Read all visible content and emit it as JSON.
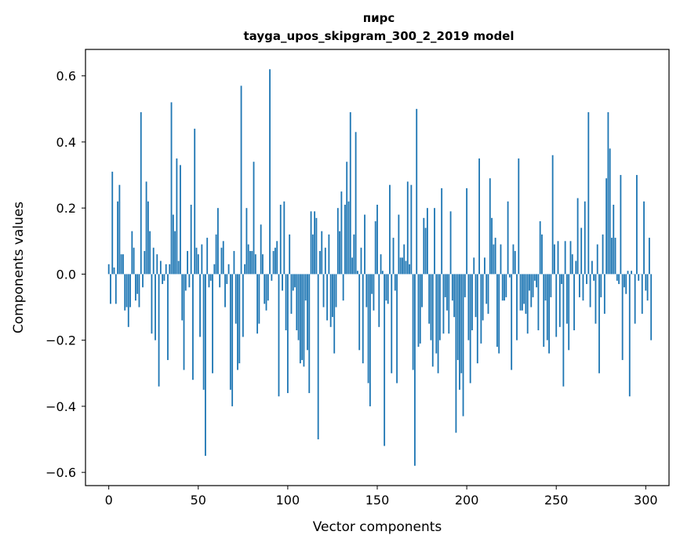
{
  "chart_data": {
    "type": "bar",
    "title_lines": [
      "пирс",
      "tayga_upos_skipgram_300_2_2019 model"
    ],
    "xlabel": "Vector components",
    "ylabel": "Components values",
    "xlim": [
      -13,
      313
    ],
    "ylim": [
      -0.64,
      0.68
    ],
    "xticks": [
      0,
      50,
      100,
      150,
      200,
      250,
      300
    ],
    "xtick_labels": [
      "0",
      "50",
      "100",
      "150",
      "200",
      "250",
      "300"
    ],
    "yticks": [
      -0.6,
      -0.4,
      -0.2,
      0.0,
      0.2,
      0.4,
      0.6
    ],
    "ytick_labels": [
      "−0.6",
      "−0.4",
      "−0.2",
      "0.0",
      "0.2",
      "0.4",
      "0.6"
    ],
    "grid": false,
    "bar_color": "#1f77b4",
    "values": [
      0.03,
      -0.09,
      0.31,
      0.02,
      -0.09,
      0.22,
      0.27,
      0.06,
      0.06,
      -0.11,
      -0.1,
      -0.16,
      -0.1,
      0.13,
      0.08,
      -0.08,
      -0.06,
      -0.1,
      0.49,
      -0.04,
      0.07,
      0.28,
      0.22,
      0.13,
      -0.18,
      0.08,
      -0.2,
      0.06,
      -0.34,
      0.04,
      -0.03,
      -0.02,
      0.03,
      -0.26,
      0.03,
      0.52,
      0.18,
      0.13,
      0.35,
      0.04,
      0.33,
      -0.14,
      -0.29,
      -0.05,
      0.07,
      -0.04,
      0.21,
      -0.32,
      0.44,
      0.08,
      0.06,
      -0.19,
      0.09,
      -0.35,
      -0.55,
      0.11,
      -0.04,
      -0.02,
      -0.3,
      0.03,
      0.12,
      0.2,
      -0.04,
      0.08,
      0.1,
      -0.1,
      -0.03,
      0.03,
      -0.35,
      -0.4,
      0.07,
      -0.15,
      -0.29,
      -0.27,
      0.57,
      -0.19,
      0.03,
      0.2,
      0.09,
      0.07,
      0.07,
      0.34,
      0.06,
      -0.18,
      -0.15,
      0.15,
      0.06,
      -0.09,
      -0.11,
      -0.08,
      0.62,
      -0.02,
      0.07,
      0.08,
      0.1,
      -0.37,
      0.21,
      -0.05,
      0.22,
      -0.17,
      -0.36,
      0.12,
      -0.12,
      -0.05,
      -0.04,
      -0.17,
      -0.2,
      -0.27,
      -0.26,
      -0.28,
      -0.08,
      -0.23,
      -0.36,
      0.19,
      0.12,
      0.19,
      0.17,
      -0.5,
      0.07,
      0.13,
      -0.1,
      0.08,
      -0.14,
      0.12,
      -0.16,
      -0.13,
      -0.24,
      -0.1,
      0.2,
      0.13,
      0.25,
      -0.08,
      0.21,
      0.34,
      0.22,
      0.49,
      0.05,
      0.12,
      0.43,
      0.01,
      -0.23,
      0.08,
      -0.27,
      0.18,
      -0.1,
      -0.33,
      -0.4,
      -0.06,
      -0.11,
      0.16,
      0.21,
      -0.16,
      0.06,
      0.01,
      -0.52,
      -0.08,
      -0.09,
      0.27,
      -0.3,
      0.11,
      -0.05,
      -0.33,
      0.18,
      0.05,
      0.05,
      0.09,
      0.04,
      0.28,
      0.03,
      0.27,
      -0.29,
      -0.58,
      0.5,
      -0.22,
      -0.21,
      -0.1,
      0.17,
      0.14,
      0.2,
      -0.15,
      -0.2,
      -0.28,
      0.2,
      -0.24,
      -0.3,
      -0.2,
      0.26,
      -0.18,
      -0.07,
      -0.11,
      -0.18,
      0.19,
      -0.08,
      -0.13,
      -0.48,
      -0.26,
      -0.35,
      -0.3,
      -0.43,
      -0.07,
      0.26,
      -0.2,
      -0.33,
      -0.17,
      0.05,
      -0.13,
      -0.27,
      0.35,
      -0.21,
      -0.14,
      0.05,
      -0.09,
      -0.12,
      0.29,
      0.17,
      0.09,
      0.11,
      -0.22,
      -0.24,
      0.09,
      -0.08,
      -0.08,
      -0.07,
      0.22,
      -0.01,
      -0.29,
      0.09,
      0.07,
      -0.2,
      0.35,
      -0.11,
      -0.11,
      -0.09,
      -0.12,
      -0.18,
      -0.05,
      -0.1,
      -0.07,
      -0.02,
      -0.04,
      -0.17,
      0.16,
      0.12,
      -0.22,
      -0.08,
      -0.2,
      -0.24,
      -0.07,
      0.36,
      0.09,
      -0.19,
      0.1,
      -0.16,
      -0.03,
      -0.34,
      0.1,
      -0.15,
      -0.23,
      0.1,
      0.06,
      -0.17,
      0.04,
      0.23,
      -0.07,
      0.14,
      -0.08,
      0.22,
      -0.03,
      0.49,
      -0.1,
      0.04,
      -0.02,
      -0.15,
      0.09,
      -0.3,
      -0.07,
      0.12,
      -0.12,
      0.29,
      0.49,
      0.38,
      0.11,
      0.21,
      0.11,
      -0.02,
      -0.03,
      0.3,
      -0.26,
      -0.04,
      -0.06,
      0.01,
      -0.37,
      0.01,
      0.0,
      -0.15,
      0.3,
      -0.02,
      0.0,
      -0.12,
      0.22,
      -0.05,
      -0.08,
      0.11,
      -0.2
    ]
  }
}
